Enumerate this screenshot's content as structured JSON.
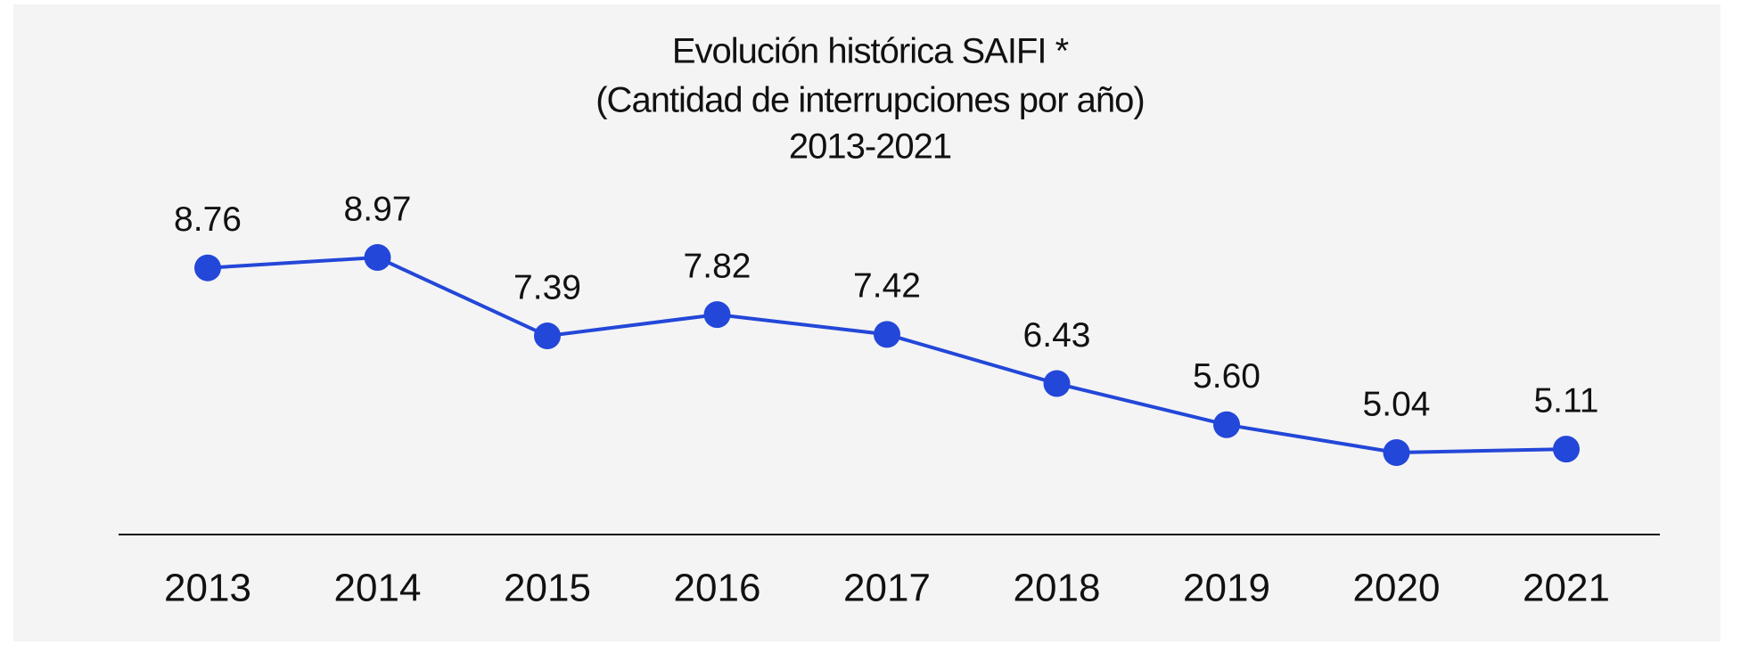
{
  "chart_data": {
    "type": "line",
    "title": [
      "Evolución histórica SAIFI *",
      "(Cantidad de interrupciones por año)",
      "2013-2021"
    ],
    "categories": [
      "2013",
      "2014",
      "2015",
      "2016",
      "2017",
      "2018",
      "2019",
      "2020",
      "2021"
    ],
    "values": [
      8.76,
      8.97,
      7.39,
      7.82,
      7.42,
      6.43,
      5.6,
      5.04,
      5.11
    ],
    "value_labels": [
      "8.76",
      "8.97",
      "7.39",
      "7.82",
      "7.42",
      "6.43",
      "5.60",
      "5.04",
      "5.11"
    ],
    "color": "#2347d8"
  }
}
